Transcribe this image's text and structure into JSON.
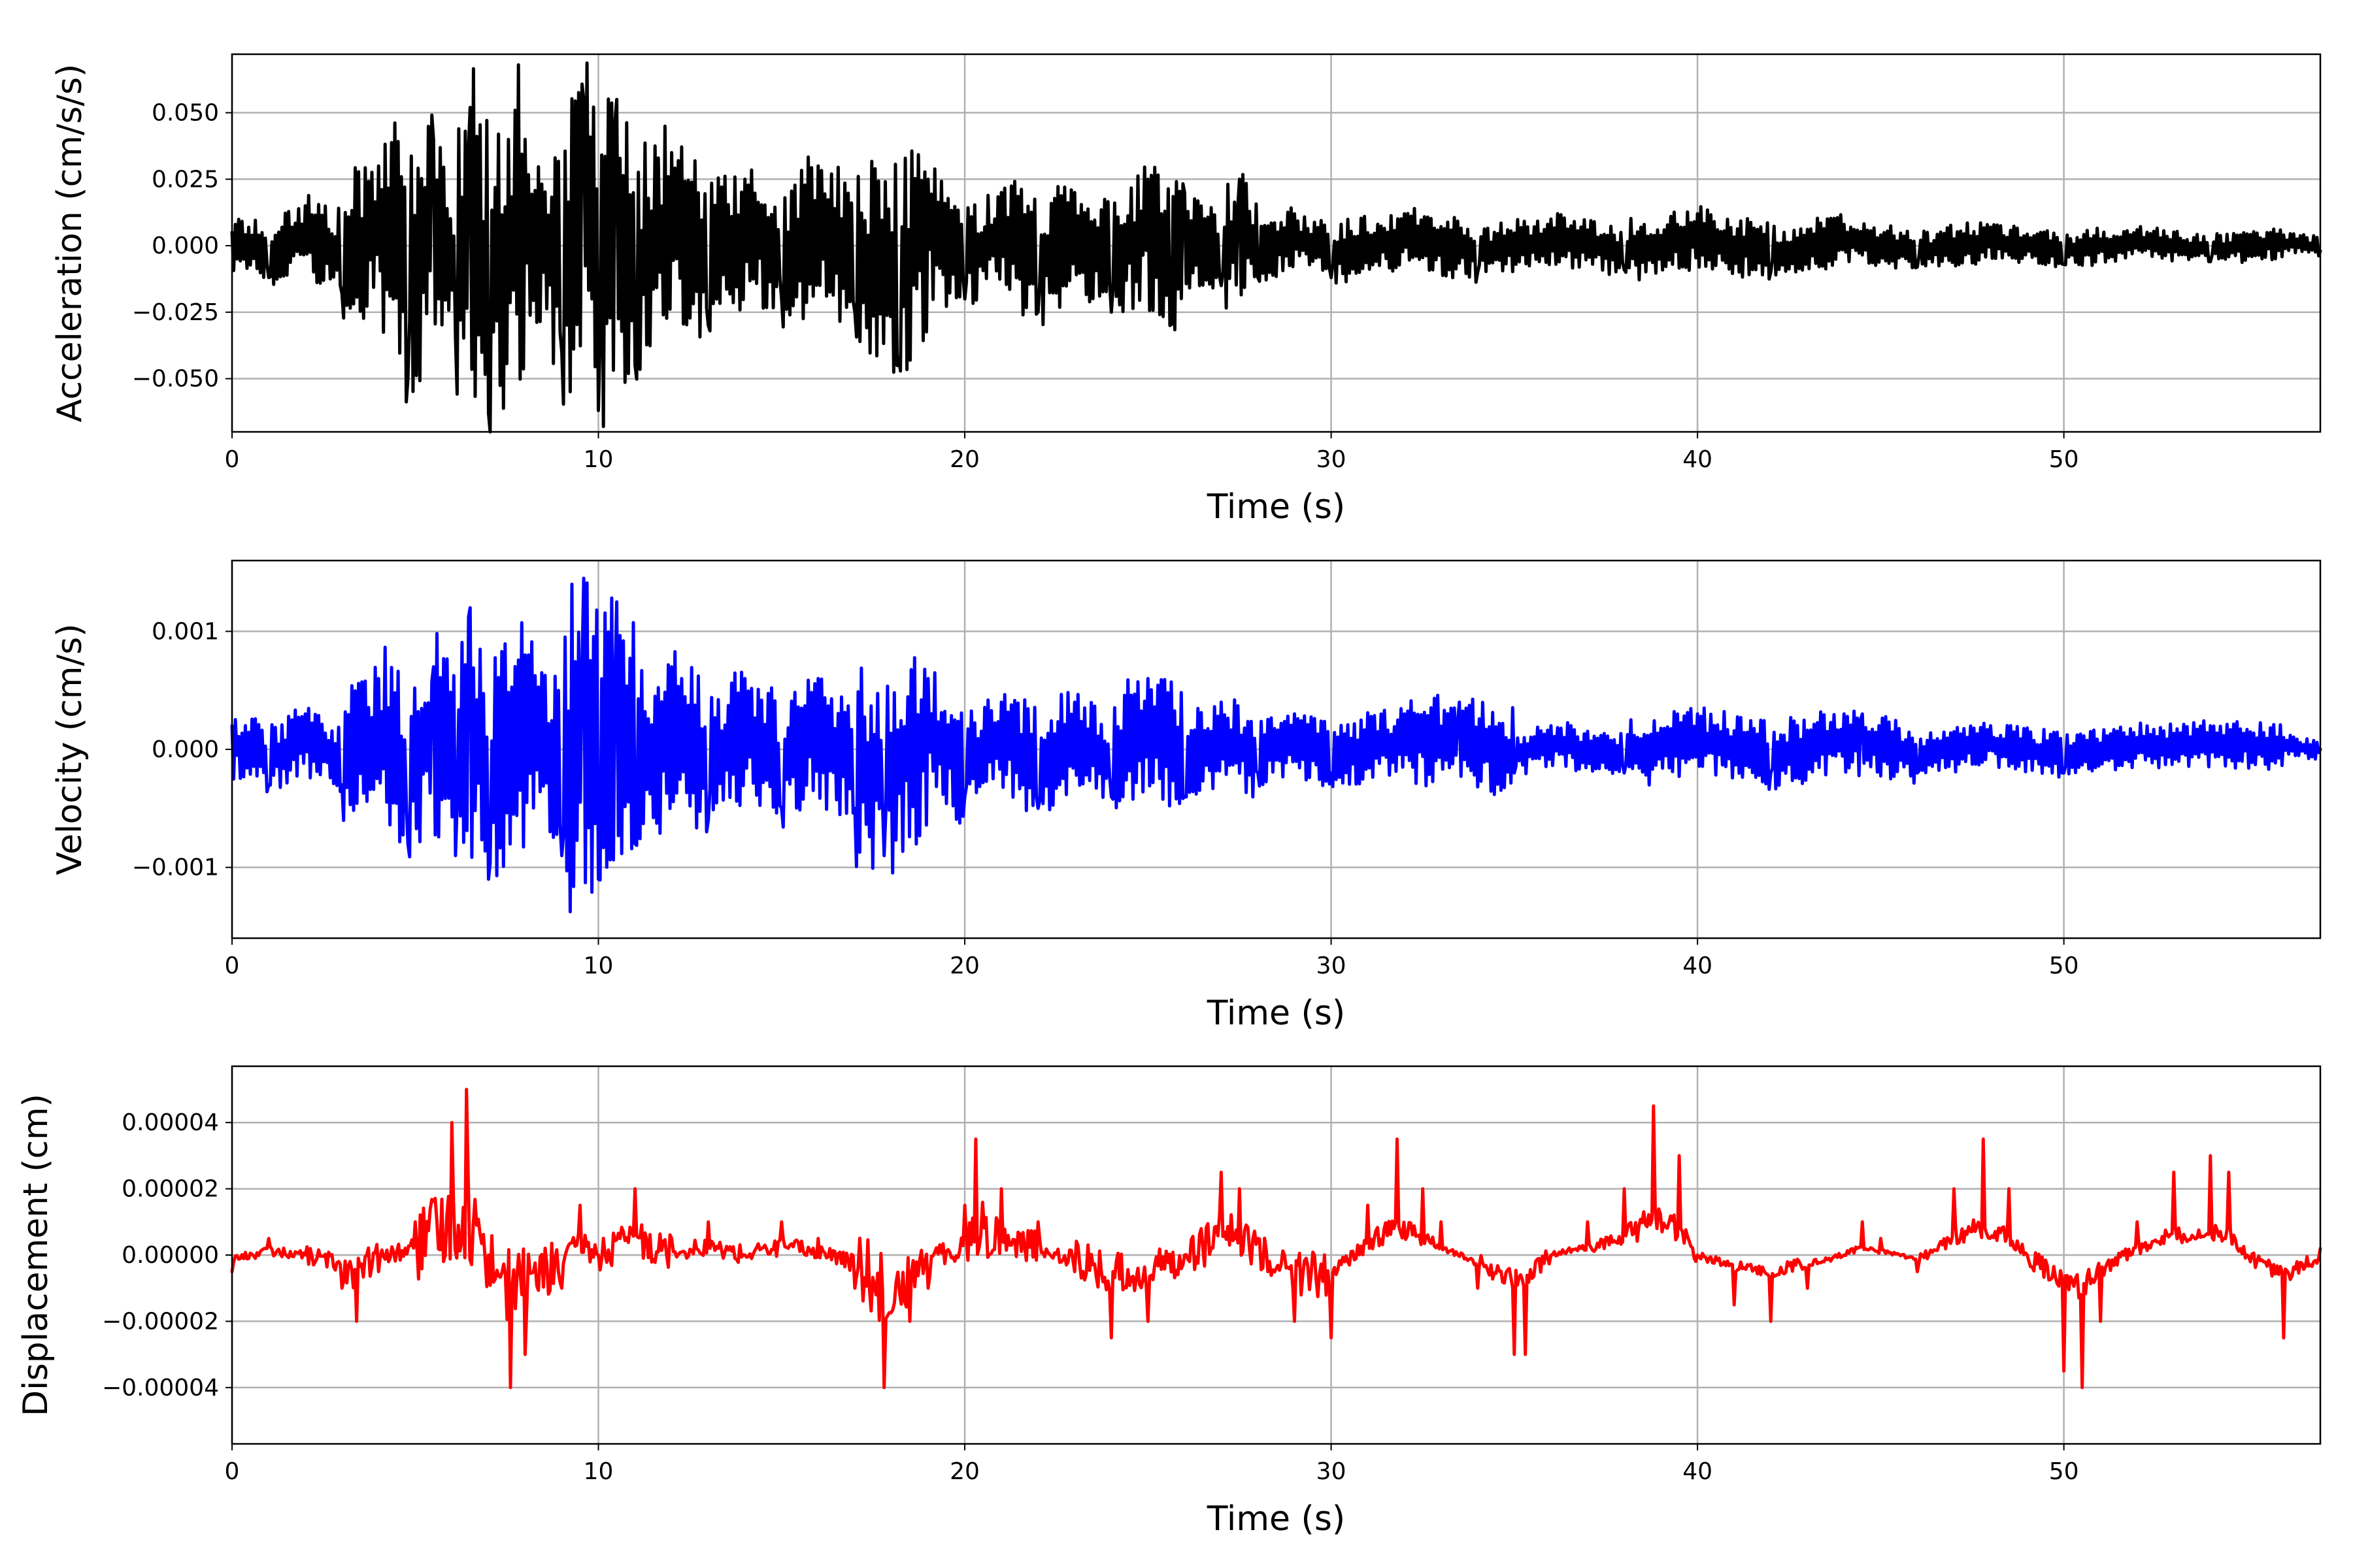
{
  "chart_data": [
    {
      "type": "line",
      "xlabel": "Time (s)",
      "ylabel": "Acceleration (cm/s/s)",
      "xlim": [
        0,
        57
      ],
      "ylim": [
        -0.07,
        0.072
      ],
      "xticks": [
        0,
        10,
        20,
        30,
        40,
        50
      ],
      "xtick_labels": [
        "0",
        "10",
        "20",
        "30",
        "40",
        "50"
      ],
      "yticks": [
        -0.05,
        -0.025,
        0,
        0.025,
        0.05
      ],
      "ytick_labels": [
        "−0.050",
        "−0.025",
        "0.000",
        "0.025",
        "0.050"
      ],
      "grid": true,
      "color": "#000000",
      "series": [
        {
          "x": [
            0,
            1,
            2,
            3,
            4,
            4.8,
            5.5,
            6.1,
            6.5,
            7,
            8,
            9,
            9.6,
            10,
            10.5,
            11,
            12,
            13,
            14,
            15,
            16,
            17,
            18.2,
            19,
            20,
            21,
            22,
            23,
            24,
            25,
            25.6,
            26,
            27,
            27.5,
            28,
            29,
            30,
            32,
            34,
            36,
            38,
            40,
            42,
            44,
            46,
            48,
            50,
            52,
            54,
            56,
            57
          ],
          "y": [
            0.005,
            -0.012,
            0.015,
            -0.018,
            0.03,
            -0.05,
            0.04,
            -0.035,
            0.052,
            -0.063,
            0.04,
            -0.04,
            0.055,
            -0.062,
            0.055,
            -0.045,
            0.035,
            -0.03,
            0.025,
            -0.02,
            0.03,
            -0.025,
            -0.042,
            0.025,
            -0.02,
            0.02,
            -0.025,
            0.02,
            -0.025,
            0.025,
            -0.03,
            0.02,
            -0.015,
            0.025,
            -0.012,
            0.012,
            -0.012,
            0.012,
            -0.01,
            0.01,
            -0.009,
            0.012,
            -0.01,
            0.008,
            -0.008,
            0.007,
            -0.007,
            0.006,
            -0.006,
            0.004,
            -0.002
          ]
        }
      ]
    },
    {
      "type": "line",
      "xlabel": "Time (s)",
      "ylabel": "Velocity (cm/s)",
      "xlim": [
        0,
        57
      ],
      "ylim": [
        -0.0016,
        0.0016
      ],
      "xticks": [
        0,
        10,
        20,
        30,
        40,
        50
      ],
      "xtick_labels": [
        "0",
        "10",
        "20",
        "30",
        "40",
        "50"
      ],
      "yticks": [
        -0.001,
        0,
        0.001
      ],
      "ytick_labels": [
        "−0.001",
        "0.000",
        "0.001"
      ],
      "grid": true,
      "color": "#0000ff",
      "series": [
        {
          "x": [
            0,
            1,
            2,
            3,
            4,
            4.8,
            5.5,
            6.1,
            6.5,
            7,
            8,
            9,
            9.6,
            10,
            10.5,
            11,
            12,
            13,
            14,
            15,
            16,
            17,
            17.8,
            19,
            20,
            21,
            22,
            23,
            24,
            25,
            26,
            27,
            28,
            29,
            30,
            32,
            33.5,
            35,
            36,
            38,
            40,
            42,
            44,
            44.5,
            46,
            48,
            50,
            52,
            54,
            56,
            57
          ],
          "y": [
            0.0002,
            -0.0003,
            0.0003,
            -0.0003,
            0.0006,
            -0.0008,
            0.0007,
            -0.0009,
            0.0012,
            -0.0011,
            0.0008,
            -0.0009,
            0.00145,
            -0.0011,
            0.00125,
            -0.0008,
            0.0007,
            -0.0006,
            0.0006,
            -0.0005,
            0.0006,
            -0.0005,
            -0.0009,
            0.0006,
            -0.0004,
            0.0004,
            -0.0005,
            0.0004,
            -0.0004,
            0.0006,
            -0.0004,
            0.0004,
            -0.0002,
            0.0003,
            -0.0002,
            0.0003,
            0.0004,
            -0.0002,
            0.0002,
            -0.0002,
            0.0003,
            -0.0002,
            0.0003,
            0.0003,
            -0.0002,
            0.0002,
            -0.0002,
            0.0001,
            0.0002,
            0.0001,
            0.0
          ]
        }
      ]
    },
    {
      "type": "line",
      "xlabel": "Time (s)",
      "ylabel": "Displacement (cm)",
      "xlim": [
        0,
        57
      ],
      "ylim": [
        -5.7e-05,
        5.7e-05
      ],
      "xticks": [
        0,
        10,
        20,
        30,
        40,
        50
      ],
      "xtick_labels": [
        "0",
        "10",
        "20",
        "30",
        "40",
        "50"
      ],
      "yticks": [
        -4e-05,
        -2e-05,
        0,
        2e-05,
        4e-05
      ],
      "ytick_labels": [
        "−0.00004",
        "−0.00002",
        "0.00000",
        "0.00002",
        "0.00004"
      ],
      "grid": true,
      "color": "#ff0000",
      "series": [
        {
          "x": [
            0,
            1,
            2,
            3,
            3.4,
            4,
            5,
            6,
            6.4,
            7,
            7.6,
            8,
            9,
            9.5,
            10,
            11,
            12,
            13,
            14,
            15,
            16,
            17,
            17.8,
            18.5,
            19,
            20,
            20.3,
            21,
            22,
            23,
            24,
            25,
            26,
            27,
            27.5,
            28,
            29,
            30,
            31,
            31.8,
            32.5,
            33,
            34,
            35,
            35.3,
            36,
            37,
            38,
            38.8,
            39.5,
            40,
            41,
            42,
            43,
            44,
            44.5,
            45,
            46,
            47,
            47.8,
            48.5,
            49,
            50,
            50.5,
            51,
            52,
            53,
            54,
            54.5,
            55,
            56,
            57
          ],
          "y": [
            -5e-06,
            5e-06,
            0.0,
            -1e-05,
            -2e-05,
            -5e-06,
            1e-05,
            4e-05,
            5e-05,
            0.0,
            -4e-05,
            -3e-05,
            -1e-05,
            1.5e-05,
            0.0,
            2e-05,
            5e-06,
            1e-05,
            0.0,
            1e-05,
            5e-06,
            -1e-05,
            -4e-05,
            -2e-05,
            -1e-05,
            1.5e-05,
            3.5e-05,
            2e-05,
            1e-05,
            -5e-06,
            -2.5e-05,
            -2e-05,
            0.0,
            2.5e-05,
            2e-05,
            5e-06,
            -2e-05,
            -2.5e-05,
            1.5e-05,
            3.5e-05,
            2e-05,
            1e-05,
            -1e-05,
            -3e-05,
            -3e-05,
            0.0,
            1e-05,
            2e-05,
            4.5e-05,
            3e-05,
            0.0,
            -1.5e-05,
            -2e-05,
            -1e-05,
            0.0,
            1e-05,
            5e-06,
            -5e-06,
            2e-05,
            3.5e-05,
            2e-05,
            0.0,
            -3.5e-05,
            -4e-05,
            -2e-05,
            1e-05,
            2.5e-05,
            3e-05,
            2.5e-05,
            0.0,
            -2.5e-05,
            2e-06
          ]
        }
      ]
    }
  ]
}
